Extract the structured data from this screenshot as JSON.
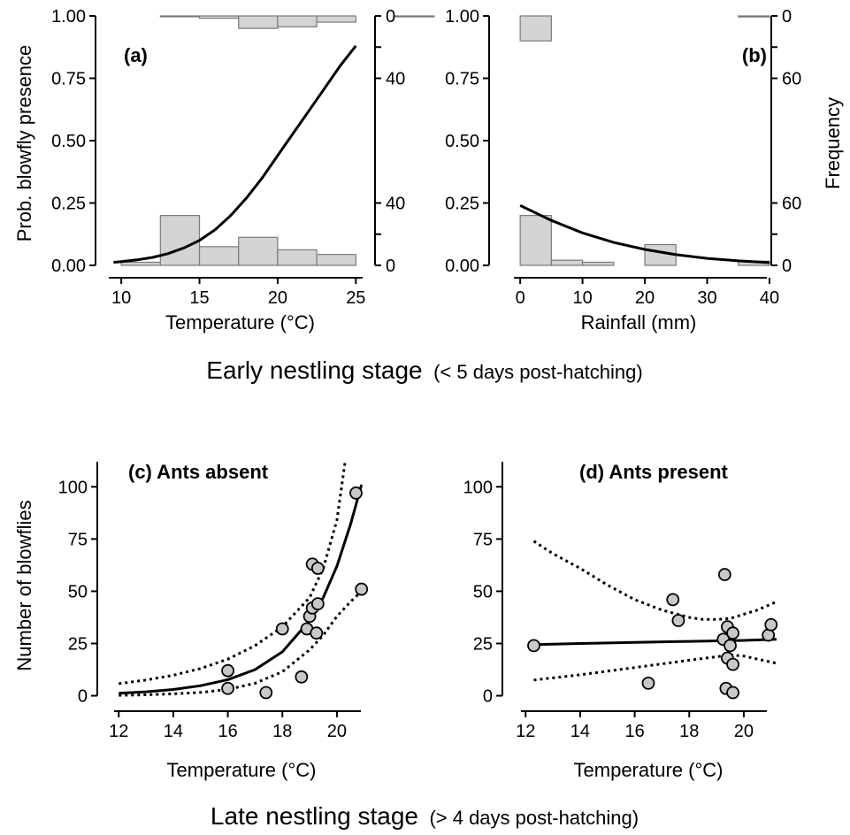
{
  "captions": {
    "early_main": "Early nestling stage",
    "early_paren": "(< 5 days post-hatching)",
    "late_main": "Late nestling stage",
    "late_paren": "(> 4 days post-hatching)"
  },
  "chart_data": [
    {
      "panel": "(a)",
      "type": "line",
      "xlabel": "Temperature (°C)",
      "ylabel": "Prob. blowfly presence",
      "y2label": "",
      "xlim": [
        9.2,
        26
      ],
      "ylim": [
        0,
        1
      ],
      "xticks": [
        10,
        15,
        20,
        25
      ],
      "yticks": [
        0,
        0.25,
        0.5,
        0.75,
        1
      ],
      "ytick_labels": [
        "0.00",
        "0.25",
        "0.50",
        "0.75",
        "1.00"
      ],
      "right_ticks_bottom": [
        "0",
        "40"
      ],
      "right_ticks_top": [
        "0",
        "40"
      ],
      "freq_scale": 160,
      "curve": {
        "x": [
          9.5,
          10,
          11,
          12,
          13,
          14,
          15,
          16,
          17,
          18,
          19,
          20,
          21,
          22,
          23,
          24,
          25
        ],
        "y": [
          0.012,
          0.015,
          0.022,
          0.032,
          0.047,
          0.07,
          0.1,
          0.143,
          0.2,
          0.27,
          0.35,
          0.44,
          0.53,
          0.62,
          0.71,
          0.8,
          0.88
        ]
      },
      "hist_bottom": [
        {
          "x0": 10,
          "x1": 12.5,
          "count": 2
        },
        {
          "x0": 12.5,
          "x1": 15,
          "count": 32
        },
        {
          "x0": 15,
          "x1": 17.5,
          "count": 12
        },
        {
          "x0": 17.5,
          "x1": 20,
          "count": 18
        },
        {
          "x0": 20,
          "x1": 22.5,
          "count": 10
        },
        {
          "x0": 22.5,
          "x1": 25,
          "count": 7
        }
      ],
      "hist_top": [
        {
          "x0": 12.5,
          "x1": 15,
          "count": 0.5
        },
        {
          "x0": 15,
          "x1": 17.5,
          "count": 1.5
        },
        {
          "x0": 17.5,
          "x1": 20,
          "count": 8
        },
        {
          "x0": 20,
          "x1": 22.5,
          "count": 7
        },
        {
          "x0": 22.5,
          "x1": 25,
          "count": 4
        },
        {
          "x0": 27.5,
          "x1": 30,
          "count": 0.6
        }
      ]
    },
    {
      "panel": "(b)",
      "type": "line",
      "xlabel": "Rainfall (mm)",
      "ylabel": "",
      "y2label": "Frequency",
      "xlim": [
        -3,
        41
      ],
      "ylim": [
        0,
        1
      ],
      "xticks": [
        0,
        10,
        20,
        30,
        40
      ],
      "yticks": [
        0,
        0.25,
        0.5,
        0.75,
        1
      ],
      "ytick_labels": [
        "0.00",
        "0.25",
        "0.50",
        "0.75",
        "1.00"
      ],
      "right_ticks_bottom": [
        "0",
        "60"
      ],
      "right_ticks_top": [
        "0",
        "60"
      ],
      "freq_scale": 240,
      "curve": {
        "x": [
          0,
          5,
          10,
          15,
          20,
          25,
          30,
          35,
          40
        ],
        "y": [
          0.24,
          0.18,
          0.13,
          0.092,
          0.064,
          0.043,
          0.028,
          0.018,
          0.011
        ]
      },
      "hist_bottom": [
        {
          "x0": 0,
          "x1": 5,
          "count": 48
        },
        {
          "x0": 5,
          "x1": 10,
          "count": 5
        },
        {
          "x0": 10,
          "x1": 15,
          "count": 3
        },
        {
          "x0": 15,
          "x1": 20,
          "count": 0
        },
        {
          "x0": 20,
          "x1": 25,
          "count": 20
        },
        {
          "x0": 35,
          "x1": 40,
          "count": 4
        }
      ],
      "hist_top": [
        {
          "x0": 0,
          "x1": 5,
          "count": 24
        },
        {
          "x0": 35,
          "x1": 40,
          "count": 1
        }
      ]
    },
    {
      "panel": "(c) Ants absent",
      "type": "scatter",
      "xlabel": "Temperature (°C)",
      "ylabel": "Number of blowflies",
      "xlim": [
        11.7,
        21.3
      ],
      "ylim": [
        -4,
        112
      ],
      "xticks": [
        12,
        14,
        16,
        18,
        20
      ],
      "yticks": [
        0,
        25,
        50,
        75,
        100
      ],
      "points": [
        {
          "x": 16.0,
          "y": 12
        },
        {
          "x": 16.0,
          "y": 3.5
        },
        {
          "x": 17.4,
          "y": 1.5
        },
        {
          "x": 18.0,
          "y": 32
        },
        {
          "x": 18.7,
          "y": 9
        },
        {
          "x": 18.9,
          "y": 32
        },
        {
          "x": 19.0,
          "y": 38
        },
        {
          "x": 19.1,
          "y": 42
        },
        {
          "x": 19.1,
          "y": 63
        },
        {
          "x": 19.3,
          "y": 61
        },
        {
          "x": 19.3,
          "y": 44
        },
        {
          "x": 19.25,
          "y": 30
        },
        {
          "x": 20.7,
          "y": 97
        },
        {
          "x": 20.9,
          "y": 51
        }
      ],
      "fit": {
        "x": [
          12,
          13,
          14,
          15,
          16,
          17,
          18,
          19,
          19.5,
          20,
          20.5,
          20.9
        ],
        "y": [
          1.2,
          1.9,
          3.0,
          4.8,
          7.7,
          12.5,
          21,
          36,
          47,
          62,
          82,
          101
        ]
      },
      "ci_upper": {
        "x": [
          12,
          13,
          14,
          15,
          16,
          17,
          18,
          19,
          19.5,
          20,
          20.3
        ],
        "y": [
          5.8,
          7.5,
          9.8,
          13,
          17.5,
          24,
          33,
          47,
          61,
          84,
          112
        ]
      },
      "ci_lower": {
        "x": [
          12,
          13,
          14,
          15,
          16,
          17,
          18,
          19,
          19.5,
          20,
          20.5,
          20.9
        ],
        "y": [
          0.2,
          0.45,
          0.9,
          1.6,
          3,
          6,
          11.5,
          22,
          29,
          38,
          45,
          50
        ]
      }
    },
    {
      "panel": "(d) Ants present",
      "type": "scatter",
      "xlabel": "Temperature (°C)",
      "ylabel": "",
      "xlim": [
        11.7,
        21.3
      ],
      "ylim": [
        -4,
        112
      ],
      "xticks": [
        12,
        14,
        16,
        18,
        20
      ],
      "yticks": [
        0,
        25,
        50,
        75,
        100
      ],
      "points": [
        {
          "x": 12.3,
          "y": 24
        },
        {
          "x": 16.5,
          "y": 6
        },
        {
          "x": 17.4,
          "y": 46
        },
        {
          "x": 17.6,
          "y": 36
        },
        {
          "x": 19.3,
          "y": 58
        },
        {
          "x": 19.25,
          "y": 27
        },
        {
          "x": 19.4,
          "y": 33
        },
        {
          "x": 19.4,
          "y": 18
        },
        {
          "x": 19.5,
          "y": 24
        },
        {
          "x": 19.6,
          "y": 30
        },
        {
          "x": 19.6,
          "y": 15
        },
        {
          "x": 19.35,
          "y": 3.5
        },
        {
          "x": 19.6,
          "y": 1.5
        },
        {
          "x": 20.9,
          "y": 29
        },
        {
          "x": 21.0,
          "y": 34
        }
      ],
      "fit": {
        "x": [
          12.3,
          14,
          16,
          18,
          20,
          21.2
        ],
        "y": [
          24.5,
          25,
          25.5,
          26,
          26.5,
          27
        ]
      },
      "ci_upper": {
        "x": [
          12.3,
          13,
          14,
          15,
          16,
          17,
          18,
          18.5,
          19,
          19.5,
          20,
          20.5,
          21.2
        ],
        "y": [
          74,
          68,
          61,
          53,
          46,
          41,
          37.5,
          36.5,
          36.5,
          37,
          39,
          41,
          45
        ]
      },
      "ci_lower": {
        "x": [
          12.3,
          14,
          16,
          18,
          19.5,
          20,
          21.2
        ],
        "y": [
          7.5,
          10,
          13.5,
          17,
          19.5,
          19,
          15.5
        ]
      }
    }
  ]
}
